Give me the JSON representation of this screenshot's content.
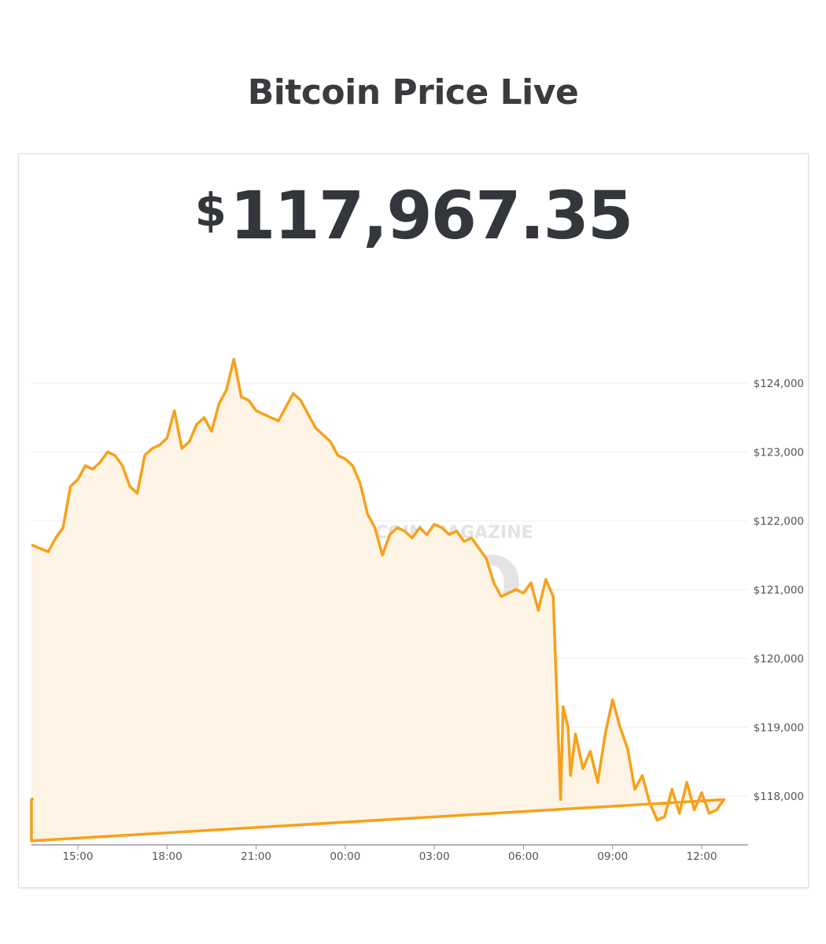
{
  "page": {
    "title": "Bitcoin Price Live"
  },
  "price": {
    "currency_symbol": "$",
    "value": "117,967.35"
  },
  "watermark": {
    "line1": "BITCOIN MAGAZINE",
    "line2": "PRO",
    "icon": "bitcoin-magazine-logo-icon"
  },
  "colors": {
    "line": "#f7a11a",
    "fill": "#fdf4e6",
    "grid": "#efefef",
    "axis": "#999999",
    "title": "#3a3b3e"
  },
  "chart_data": {
    "type": "area",
    "title": "",
    "xlabel": "",
    "ylabel": "",
    "ylim": [
      117350,
      124650
    ],
    "y_ticks": [
      124000,
      123000,
      122000,
      121000,
      120000,
      119000,
      118000
    ],
    "y_tick_labels": [
      "$124,000",
      "$123,000",
      "$122,000",
      "$121,000",
      "$120,000",
      "$119,000",
      "$118,000"
    ],
    "x_ticks": [
      "15:00",
      "18:00",
      "21:00",
      "00:00",
      "03:00",
      "06:00",
      "09:00",
      "12:00"
    ],
    "grid": true,
    "series": [
      {
        "x": [
          "13:30",
          "14:00",
          "14:15",
          "14:30",
          "14:45",
          "15:00",
          "15:15",
          "15:30",
          "15:45",
          "16:00",
          "16:15",
          "16:30",
          "16:45",
          "17:00",
          "17:15",
          "17:30",
          "17:45",
          "18:00",
          "18:15",
          "18:30",
          "18:45",
          "19:00",
          "19:15",
          "19:30",
          "19:45",
          "20:00",
          "20:15",
          "20:30",
          "20:45",
          "21:00",
          "21:15",
          "21:30",
          "21:45",
          "22:00",
          "22:15",
          "22:30",
          "22:45",
          "23:00",
          "23:15",
          "23:30",
          "23:45",
          "00:00",
          "00:15",
          "00:30",
          "00:45",
          "01:00",
          "01:15",
          "01:30",
          "01:45",
          "02:00",
          "02:15",
          "02:30",
          "02:45",
          "03:00",
          "03:15",
          "03:30",
          "03:45",
          "04:00",
          "04:15",
          "04:30",
          "04:45",
          "05:00",
          "05:15",
          "05:30",
          "05:45",
          "06:00",
          "06:15",
          "06:30",
          "06:45",
          "07:00",
          "07:15",
          "07:20",
          "07:30",
          "07:35",
          "07:45",
          "08:00",
          "08:15",
          "08:30",
          "08:45",
          "09:00",
          "09:15",
          "09:30",
          "09:45",
          "10:00",
          "10:15",
          "10:30",
          "10:45",
          "11:00",
          "11:15",
          "11:30",
          "11:45",
          "12:00",
          "12:15",
          "12:30",
          "12:45",
          "13:00",
          "13:15",
          "13:20",
          "13:30"
        ],
        "values": [
          121650,
          121550,
          121750,
          121900,
          122500,
          122600,
          122800,
          122750,
          122850,
          123000,
          122950,
          122800,
          122500,
          122400,
          122950,
          123050,
          123100,
          123200,
          123600,
          123050,
          123150,
          123400,
          123500,
          123300,
          123700,
          123900,
          124350,
          123800,
          123750,
          123600,
          123550,
          123500,
          123450,
          123650,
          123850,
          123750,
          123550,
          123350,
          123250,
          123150,
          122950,
          122900,
          122800,
          122550,
          122100,
          121900,
          121500,
          121800,
          121900,
          121850,
          121750,
          121900,
          121800,
          121950,
          121900,
          121800,
          121850,
          121700,
          121750,
          121600,
          121450,
          121100,
          120900,
          120950,
          121000,
          120950,
          121100,
          120700,
          121150,
          120900,
          117950,
          119300,
          119000,
          118300,
          118900,
          118400,
          118650,
          118200,
          118900,
          119400,
          119000,
          118700,
          118100,
          118300,
          117900,
          117650,
          117700,
          118100,
          117750,
          118200,
          117800,
          118050,
          117750,
          117800,
          117950,
          117350,
          117950,
          117950,
          117967
        ]
      }
    ]
  }
}
